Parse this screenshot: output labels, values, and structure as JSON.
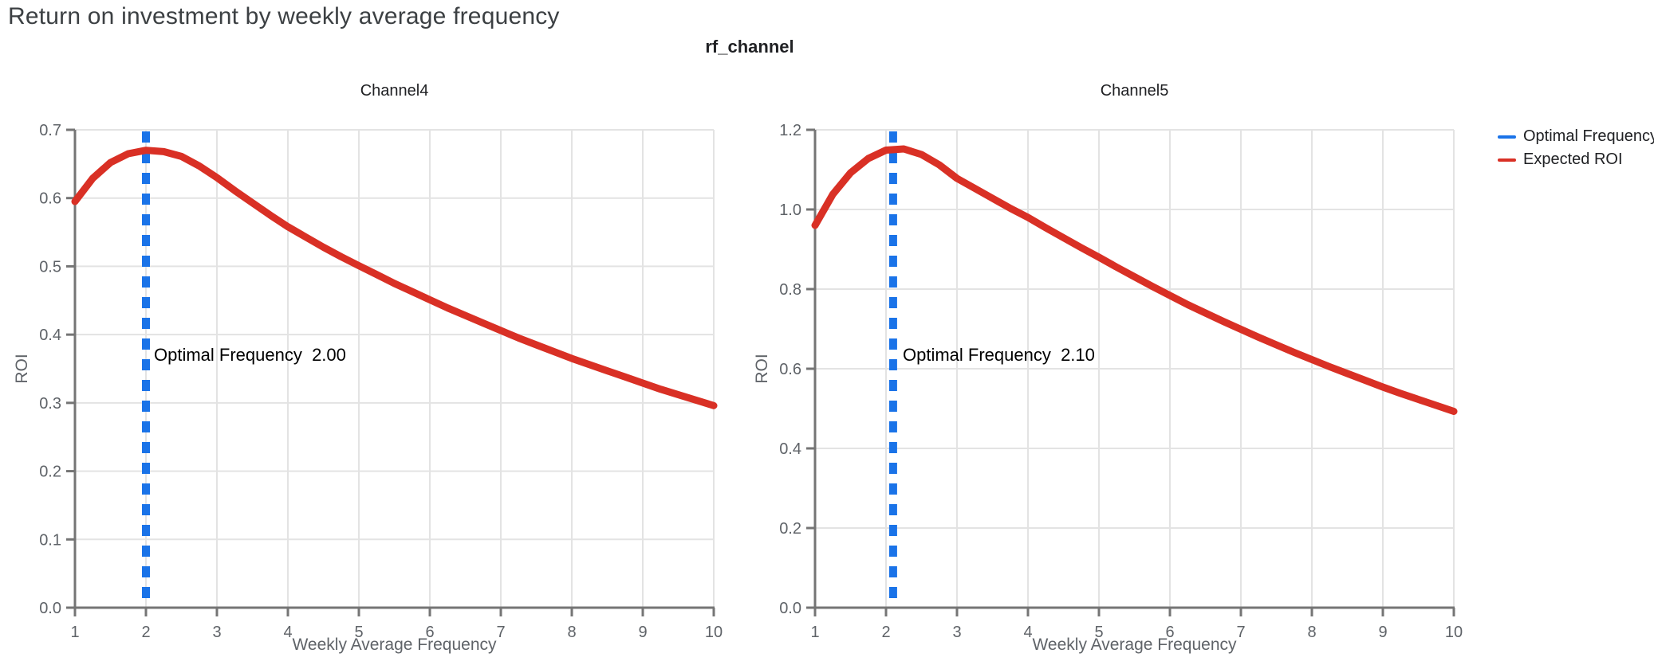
{
  "page": {
    "title": "Return on investment by weekly average frequency"
  },
  "figure": {
    "suptitle": "rf_channel",
    "legend_position": "right",
    "legend": [
      {
        "label": "Optimal Frequency",
        "color": "#1a73e8",
        "style": "dashed-line"
      },
      {
        "label": "Expected ROI",
        "color": "#d93025",
        "style": "solid-line"
      }
    ]
  },
  "colors": {
    "expected_roi_line": "#d93025",
    "optimal_frequency_line": "#1a73e8",
    "grid": "#e3e3e3",
    "axis": "#757575",
    "tick_label": "#5f6368",
    "title_text": "#3c4043"
  },
  "chart_data": [
    {
      "type": "line",
      "title": "Channel4",
      "xlabel": "Weekly Average Frequency",
      "ylabel": "ROI",
      "xlim": [
        1,
        10
      ],
      "ylim": [
        0,
        0.7
      ],
      "grid": true,
      "xticks": [
        1,
        2,
        3,
        4,
        5,
        6,
        7,
        8,
        9,
        10
      ],
      "xtick_labels": [
        "1",
        "2",
        "3",
        "4",
        "5",
        "6",
        "7",
        "8",
        "9",
        "10"
      ],
      "yticks": [
        0.0,
        0.1,
        0.2,
        0.3,
        0.4,
        0.5,
        0.6,
        0.7
      ],
      "ytick_labels": [
        "0.0",
        "0.1",
        "0.2",
        "0.3",
        "0.4",
        "0.5",
        "0.6",
        "0.7"
      ],
      "optimal_frequency": 2.0,
      "annotation": "Optimal Frequency  2.00",
      "vline": {
        "name": "Optimal Frequency",
        "x": 2.0,
        "color": "#1a73e8"
      },
      "x": [
        1,
        1.25,
        1.5,
        1.75,
        2,
        2.25,
        2.5,
        2.75,
        3,
        3.25,
        3.5,
        3.75,
        4,
        4.25,
        4.5,
        4.75,
        5,
        5.25,
        5.5,
        5.75,
        6,
        6.25,
        6.5,
        6.75,
        7,
        7.25,
        7.5,
        7.75,
        8,
        8.25,
        8.5,
        8.75,
        9,
        9.25,
        9.5,
        9.75,
        10
      ],
      "series": [
        {
          "name": "Expected ROI",
          "color": "#d93025",
          "y": [
            0.595,
            0.629,
            0.652,
            0.665,
            0.67,
            0.668,
            0.661,
            0.647,
            0.63,
            0.611,
            0.593,
            0.575,
            0.558,
            0.543,
            0.528,
            0.514,
            0.501,
            0.488,
            0.475,
            0.463,
            0.451,
            0.439,
            0.428,
            0.417,
            0.406,
            0.395,
            0.385,
            0.375,
            0.365,
            0.356,
            0.347,
            0.338,
            0.329,
            0.32,
            0.312,
            0.304,
            0.296
          ]
        }
      ]
    },
    {
      "type": "line",
      "title": "Channel5",
      "xlabel": "Weekly Average Frequency",
      "ylabel": "ROI",
      "xlim": [
        1,
        10
      ],
      "ylim": [
        0,
        1.2
      ],
      "grid": true,
      "xticks": [
        1,
        2,
        3,
        4,
        5,
        6,
        7,
        8,
        9,
        10
      ],
      "xtick_labels": [
        "1",
        "2",
        "3",
        "4",
        "5",
        "6",
        "7",
        "8",
        "9",
        "10"
      ],
      "yticks": [
        0.0,
        0.2,
        0.4,
        0.6,
        0.8,
        1.0,
        1.2
      ],
      "ytick_labels": [
        "0.0",
        "0.2",
        "0.4",
        "0.6",
        "0.8",
        "1.0",
        "1.2"
      ],
      "optimal_frequency": 2.1,
      "annotation": "Optimal Frequency  2.10",
      "vline": {
        "name": "Optimal Frequency",
        "x": 2.1,
        "color": "#1a73e8"
      },
      "x": [
        1,
        1.25,
        1.5,
        1.75,
        2,
        2.25,
        2.5,
        2.75,
        3,
        3.25,
        3.5,
        3.75,
        4,
        4.25,
        4.5,
        4.75,
        5,
        5.25,
        5.5,
        5.75,
        6,
        6.25,
        6.5,
        6.75,
        7,
        7.25,
        7.5,
        7.75,
        8,
        8.25,
        8.5,
        8.75,
        9,
        9.25,
        9.5,
        9.75,
        10
      ],
      "series": [
        {
          "name": "Expected ROI",
          "color": "#d93025",
          "y": [
            0.96,
            1.038,
            1.092,
            1.128,
            1.149,
            1.152,
            1.138,
            1.112,
            1.078,
            1.053,
            1.028,
            1.003,
            0.98,
            0.954,
            0.929,
            0.904,
            0.88,
            0.855,
            0.831,
            0.807,
            0.784,
            0.761,
            0.74,
            0.719,
            0.699,
            0.679,
            0.66,
            0.641,
            0.623,
            0.605,
            0.588,
            0.571,
            0.554,
            0.538,
            0.523,
            0.508,
            0.493
          ]
        }
      ]
    }
  ]
}
